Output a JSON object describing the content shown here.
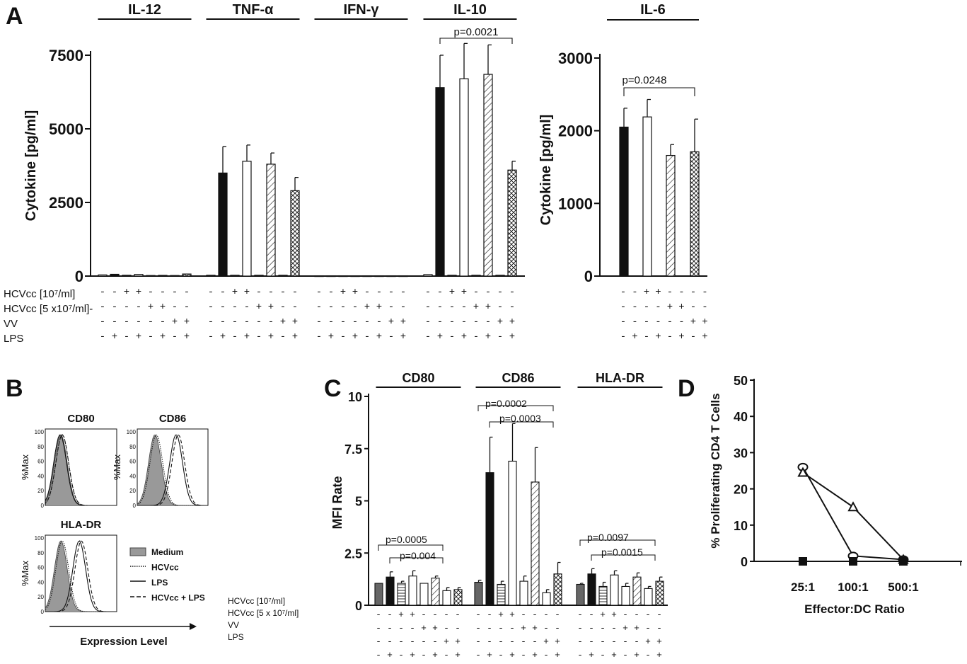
{
  "panel_letters": {
    "a": "A",
    "b": "B",
    "c": "C",
    "d": "D"
  },
  "cond_labels_a": [
    "HCVcc [10⁷/ml]",
    "HCVcc [5 x10⁷/ml]-",
    "VV",
    "LPS"
  ],
  "cond_labels_b": [
    "HCVcc [10⁷/ml]",
    "HCVcc [5 x 10⁷/ml]",
    "VV",
    "LPS"
  ],
  "cond_rows_8": [
    "- - + + - - - -",
    "- - - - + + - -",
    "- - - - - - + +",
    "- + - + - + - +"
  ],
  "cond_rows_c": [
    "- - + + - - - -",
    "- - - - + + - -",
    "- - - - - - + +",
    "- + - + - + - +"
  ],
  "chart_data": [
    {
      "type": "bar",
      "panel": "A",
      "ylabel": "Cytokine [pg/ml]",
      "yticks": [
        "0",
        "2500",
        "5000",
        "7500"
      ],
      "ylim": [
        0,
        7500
      ],
      "groups": [
        {
          "name": "IL-12",
          "values": [
            40,
            60,
            30,
            55,
            20,
            25,
            20,
            70
          ],
          "errors": [
            0,
            0,
            0,
            0,
            0,
            0,
            0,
            0
          ]
        },
        {
          "name": "TNF-α",
          "values": [
            30,
            3500,
            30,
            3900,
            30,
            3800,
            30,
            2900
          ],
          "errors": [
            0,
            900,
            0,
            550,
            0,
            380,
            0,
            450
          ]
        },
        {
          "name": "IFN-γ",
          "values": [
            10,
            10,
            10,
            10,
            10,
            10,
            10,
            10
          ],
          "errors": [
            0,
            0,
            0,
            0,
            0,
            0,
            0,
            0
          ]
        },
        {
          "name": "IL-10",
          "values": [
            50,
            6400,
            30,
            6700,
            30,
            6850,
            30,
            3600
          ],
          "errors": [
            0,
            1100,
            0,
            1200,
            0,
            1000,
            0,
            300
          ]
        }
      ],
      "annotation": "p=0.0021"
    },
    {
      "type": "bar",
      "panel": "A",
      "title": "IL-6",
      "ylabel": "Cytokine [pg/ml]",
      "yticks": [
        "0",
        "1000",
        "2000",
        "3000"
      ],
      "ylim": [
        0,
        3000
      ],
      "values": [
        2050,
        2190,
        1660,
        1710
      ],
      "errors": [
        260,
        240,
        150,
        450
      ],
      "annotation": "p=0.0248"
    },
    {
      "type": "bar",
      "panel": "C",
      "ylabel": "MFI Rate",
      "yticks": [
        "0",
        "2.5",
        "5",
        "7.5",
        "10"
      ],
      "ylim": [
        0,
        10
      ],
      "groups": [
        {
          "name": "CD80",
          "values": [
            1.05,
            1.35,
            1.05,
            1.4,
            1.05,
            1.3,
            0.7,
            0.75
          ],
          "errors": [
            0,
            0.25,
            0.1,
            0.25,
            0,
            0.1,
            0.15,
            0.1
          ]
        },
        {
          "name": "CD86",
          "values": [
            1.1,
            6.35,
            1.0,
            6.9,
            1.15,
            5.9,
            0.6,
            1.5
          ],
          "errors": [
            0.1,
            1.7,
            0.15,
            1.8,
            0.25,
            1.65,
            0.15,
            0.55
          ]
        },
        {
          "name": "HLA-DR",
          "values": [
            1.0,
            1.5,
            0.9,
            1.45,
            0.9,
            1.35,
            0.8,
            1.15
          ],
          "errors": [
            0.05,
            0.25,
            0.2,
            0.2,
            0.15,
            0.2,
            0.1,
            0.2
          ]
        }
      ],
      "annotations": [
        "p=0.0005",
        "p=0.004",
        "p=0.0002",
        "p=0.0003",
        "p=0.0097",
        "p=0.0015"
      ]
    },
    {
      "type": "line",
      "panel": "D",
      "xlabel": "Effector:DC Ratio",
      "ylabel": "% Proliferating CD4 T Cells",
      "categories": [
        "25:1",
        "100:1",
        "500:1"
      ],
      "yticks": [
        "0",
        "10",
        "20",
        "30",
        "40",
        "50"
      ],
      "ylim": [
        0,
        50
      ],
      "series": [
        {
          "marker": "circle",
          "values": [
            26,
            1.5,
            0.5
          ]
        },
        {
          "marker": "triangle",
          "values": [
            24.5,
            15,
            0.5
          ]
        },
        {
          "marker": "square",
          "values": [
            0,
            0,
            0
          ]
        }
      ]
    }
  ],
  "histograms": {
    "titles": [
      "CD80",
      "CD86",
      "HLA-DR"
    ],
    "ylabel": "%Max",
    "yticks": [
      "0",
      "20",
      "40",
      "60",
      "80",
      "100"
    ],
    "xlabel": "Expression Level",
    "legend": [
      "Medium",
      "HCVcc",
      "LPS",
      "HCVcc + LPS"
    ]
  }
}
